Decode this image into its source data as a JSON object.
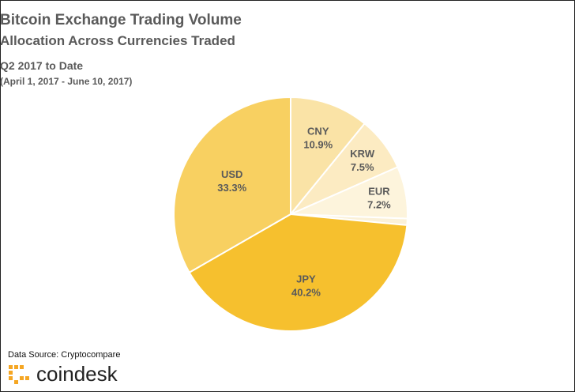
{
  "chart_data": {
    "type": "pie",
    "title": "Bitcoin Exchange Trading Volume",
    "subtitle": "Allocation Across Currencies Traded",
    "period": "Q2 2017 to Date",
    "period_detail": "(April 1, 2017 - June 10, 2017)",
    "start_angle_deg": -90,
    "slices": [
      {
        "label": "CNY",
        "value": 10.9,
        "value_label": "10.9%",
        "color": "#fae3a6"
      },
      {
        "label": "KRW",
        "value": 7.5,
        "value_label": "7.5%",
        "color": "#fcebc2"
      },
      {
        "label": "EUR",
        "value": 7.2,
        "value_label": "7.2%",
        "color": "#fdf4dc"
      },
      {
        "label": "",
        "value": 0.9,
        "value_label": "",
        "color": "#fbf1d8"
      },
      {
        "label": "JPY",
        "value": 40.2,
        "value_label": "40.2%",
        "color": "#f6c02e"
      },
      {
        "label": "USD",
        "value": 33.3,
        "value_label": "33.3%",
        "color": "#f8d061"
      }
    ]
  },
  "footer": {
    "source": "Data Source: Cryptocompare",
    "brand": "coindesk",
    "brand_color": "#f5a623"
  }
}
